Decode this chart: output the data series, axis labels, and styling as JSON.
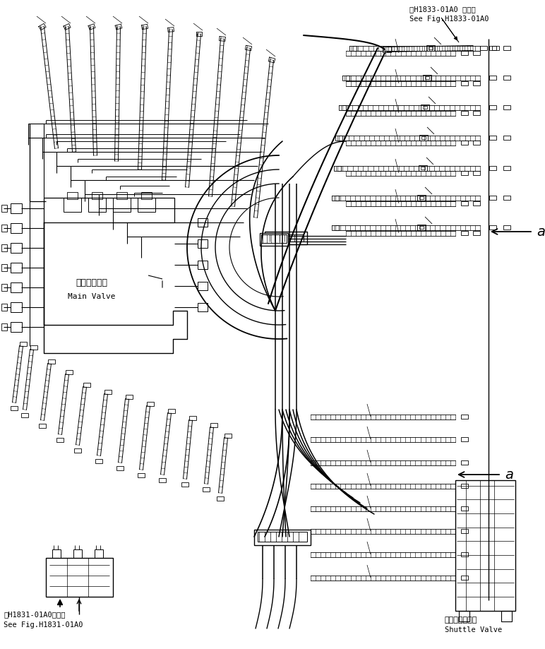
{
  "background_color": "#ffffff",
  "line_color": "#000000",
  "fig_width": 7.72,
  "fig_height": 9.19,
  "dpi": 100,
  "top_right_label1": "第H1833-01A0 図参照",
  "top_right_label2": "See Fig.H1833-01A0",
  "bottom_left_label1": "第H1831-01A0図参照",
  "bottom_left_label2": "See Fig.H1831-01A0",
  "main_valve_jp": "メインバルブ",
  "main_valve_en": "Main Valve",
  "shuttle_valve_jp": "シャトルバルブ",
  "shuttle_valve_en": "Shuttle Valve",
  "label_a": "a"
}
